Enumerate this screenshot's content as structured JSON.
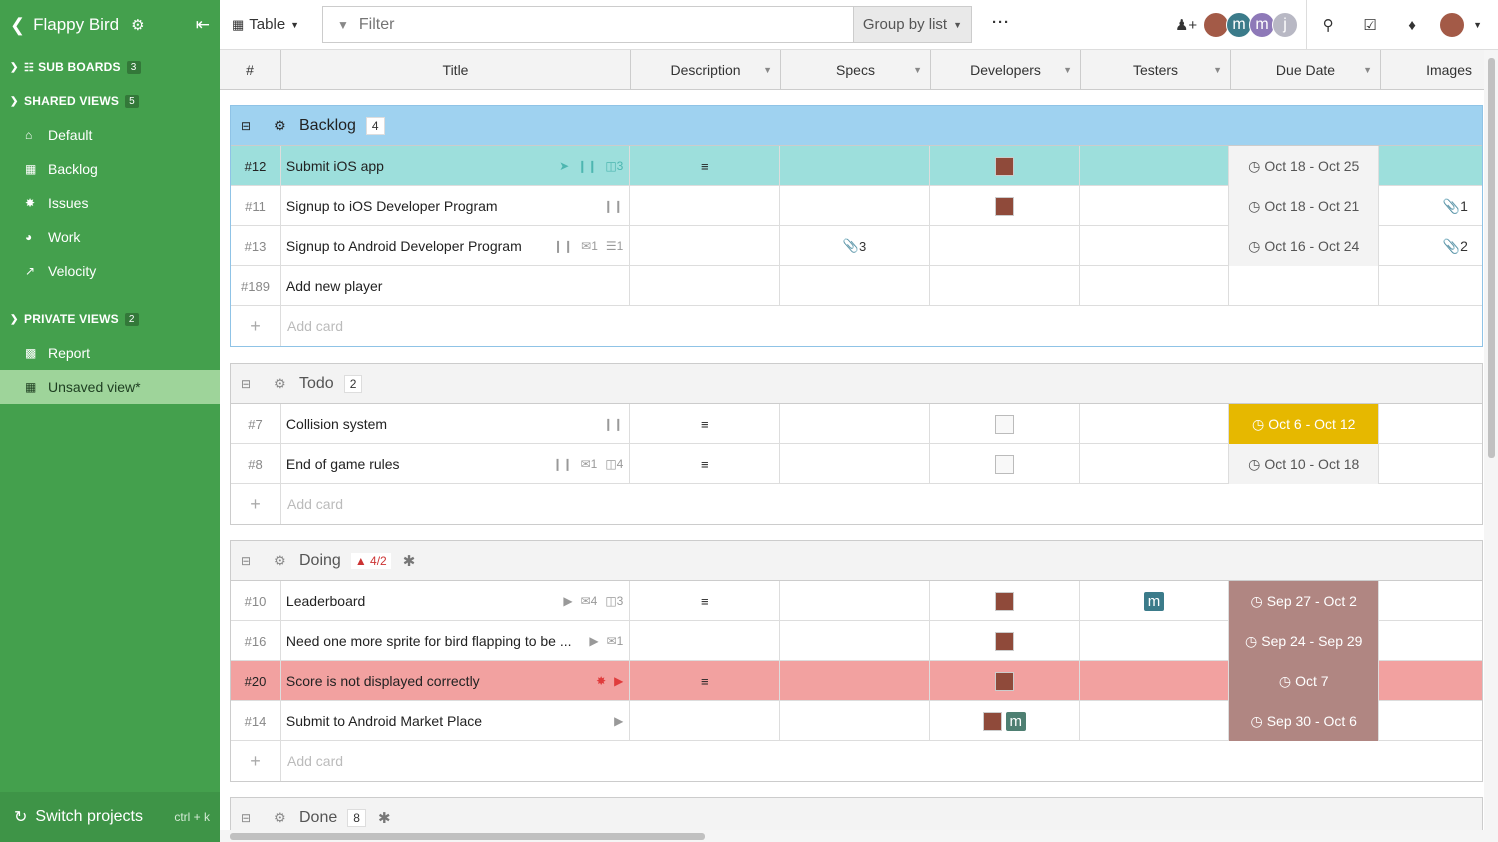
{
  "sidebar": {
    "project": "Flappy Bird",
    "sections": [
      {
        "label": "SUB BOARDS",
        "count": "3"
      },
      {
        "label": "SHARED VIEWS",
        "count": "5"
      },
      {
        "label": "PRIVATE VIEWS",
        "count": "2"
      }
    ],
    "shared": [
      "Default",
      "Backlog",
      "Issues",
      "Work",
      "Velocity"
    ],
    "private": [
      "Report",
      "Unsaved view*"
    ],
    "switch_label": "Switch projects",
    "switch_shortcut": "ctrl + k"
  },
  "toolbar": {
    "view_label": "Table",
    "filter_placeholder": "Filter",
    "group_label": "Group by list",
    "more": "···",
    "avatars": [
      "m",
      "m",
      "j"
    ]
  },
  "columns": [
    "#",
    "Title",
    "Description",
    "Specs",
    "Developers",
    "Testers",
    "Due Date",
    "Images"
  ],
  "add_card": "Add card",
  "groups": [
    {
      "name": "Backlog",
      "count": "4",
      "rows": [
        {
          "num": "#12",
          "title": "Submit iOS app",
          "title_icons": "3",
          "due": "Oct 18 - Oct 25",
          "images": ""
        },
        {
          "num": "#11",
          "title": "Signup to iOS Developer Program",
          "due": "Oct 18 - Oct 21",
          "images": "1"
        },
        {
          "num": "#13",
          "title": "Signup to Android Developer Program",
          "comments": "1",
          "checklist": "1",
          "specs": "3",
          "due": "Oct 16 - Oct 24",
          "images": "2"
        },
        {
          "num": "#189",
          "title": "Add new player",
          "due": "",
          "images": ""
        }
      ]
    },
    {
      "name": "Todo",
      "count": "2",
      "rows": [
        {
          "num": "#7",
          "title": "Collision system",
          "due": "Oct 6 - Oct 12"
        },
        {
          "num": "#8",
          "title": "End of game rules",
          "comments": "1",
          "subtasks": "4",
          "due": "Oct 10 - Oct 18"
        }
      ]
    },
    {
      "name": "Doing",
      "warning": "4/2",
      "rows": [
        {
          "num": "#10",
          "title": "Leaderboard",
          "comments": "4",
          "subtasks": "3",
          "tester": "m",
          "due": "Sep 27 - Oct 2"
        },
        {
          "num": "#16",
          "title": "Need one more sprite for bird flapping to be ...",
          "comments": "1",
          "due": "Sep 24 - Sep 29"
        },
        {
          "num": "#20",
          "title": "Score is not displayed correctly",
          "due": "Oct 7"
        },
        {
          "num": "#14",
          "title": "Submit to Android Market Place",
          "dev_tag": "m",
          "due": "Sep 30 - Oct 6"
        }
      ]
    },
    {
      "name": "Done",
      "count": "8"
    }
  ],
  "colors": {
    "sidebar_green": "#44a04d",
    "backlog_blue": "#9fd2f0",
    "teal_row": "#9ddfdc",
    "pink_row": "#f2a1a0",
    "due_yellow": "#e6b800",
    "due_brown": "#b08682"
  }
}
